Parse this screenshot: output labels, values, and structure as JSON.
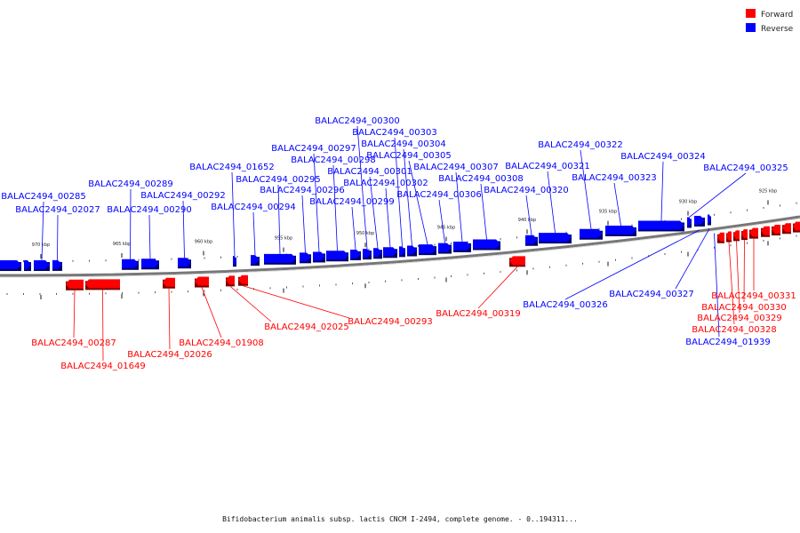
{
  "legend": [
    {
      "label": "Forward",
      "color": "#ff0000"
    },
    {
      "label": "Reverse",
      "color": "#0000ff"
    }
  ],
  "caption": "Bifidobacterium animalis subsp. lactis CNCM I-2494, complete genome. - 0..194311...",
  "scale_ticks": [
    "970 kbp",
    "965 kbp",
    "960 kbp",
    "955 kbp",
    "950 kbp",
    "945 kbp",
    "940 kbp",
    "935 kbp",
    "930 kbp",
    "925 kbp"
  ],
  "reverse_labels": [
    "BALAC2494_00285",
    "BALAC2494_02027",
    "BALAC2494_00289",
    "BALAC2494_00290",
    "BALAC2494_00292",
    "BALAC2494_01652",
    "BALAC2494_00294",
    "BALAC2494_00295",
    "BALAC2494_00296",
    "BALAC2494_00297",
    "BALAC2494_00298",
    "BALAC2494_00299",
    "BALAC2494_00300",
    "BALAC2494_00301",
    "BALAC2494_00302",
    "BALAC2494_00303",
    "BALAC2494_00304",
    "BALAC2494_00305",
    "BALAC2494_00306",
    "BALAC2494_00307",
    "BALAC2494_00308",
    "BALAC2494_00320",
    "BALAC2494_00321",
    "BALAC2494_00322",
    "BALAC2494_00323",
    "BALAC2494_00324",
    "BALAC2494_00325",
    "BALAC2494_00326",
    "BALAC2494_00327",
    "BALAC2494_01939"
  ],
  "forward_labels": [
    "BALAC2494_00287",
    "BALAC2494_01649",
    "BALAC2494_02026",
    "BALAC2494_01908",
    "BALAC2494_02025",
    "BALAC2494_00293",
    "BALAC2494_00319",
    "BALAC2494_00331",
    "BALAC2494_00330",
    "BALAC2494_00329",
    "BALAC2494_00328"
  ]
}
